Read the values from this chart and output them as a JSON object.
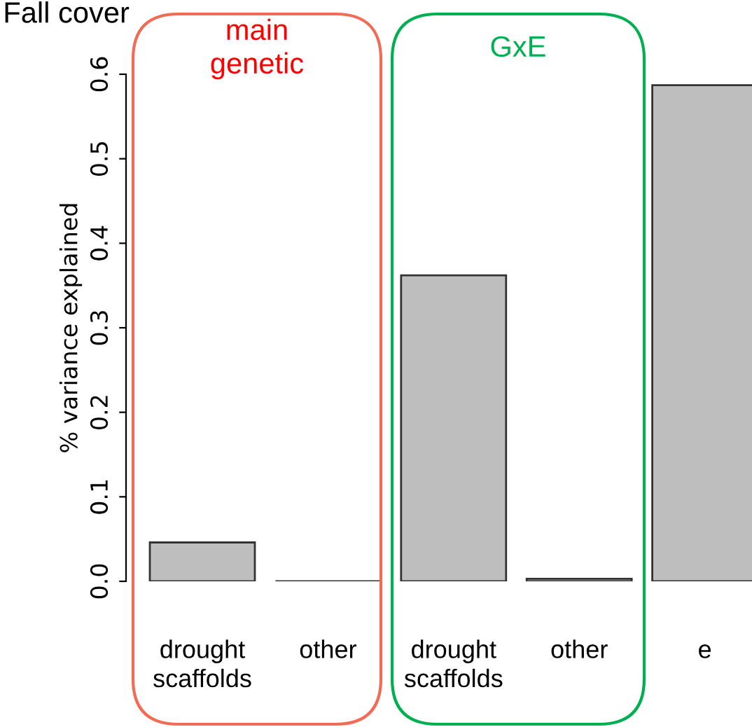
{
  "chart_data": {
    "type": "bar",
    "title": "Fall cover",
    "ylabel": "% variance explained",
    "categories": [
      "drought\nscaffolds",
      "other",
      "drought\nscaffolds",
      "other",
      "e"
    ],
    "values": [
      0.046,
      0.0,
      0.362,
      0.003,
      0.587
    ],
    "colors": [
      "#bebebe",
      "#333333",
      "#bebebe",
      "#bebebe",
      "#bebebe"
    ],
    "ylim": [
      0,
      0.6
    ],
    "yticks": [
      {
        "value": 0,
        "label": "0.0"
      },
      0.1,
      0.2,
      0.3,
      0.4,
      0.5,
      0.6
    ],
    "annotations": [
      "main\ngenetic",
      "GxE"
    ],
    "grid": false
  }
}
